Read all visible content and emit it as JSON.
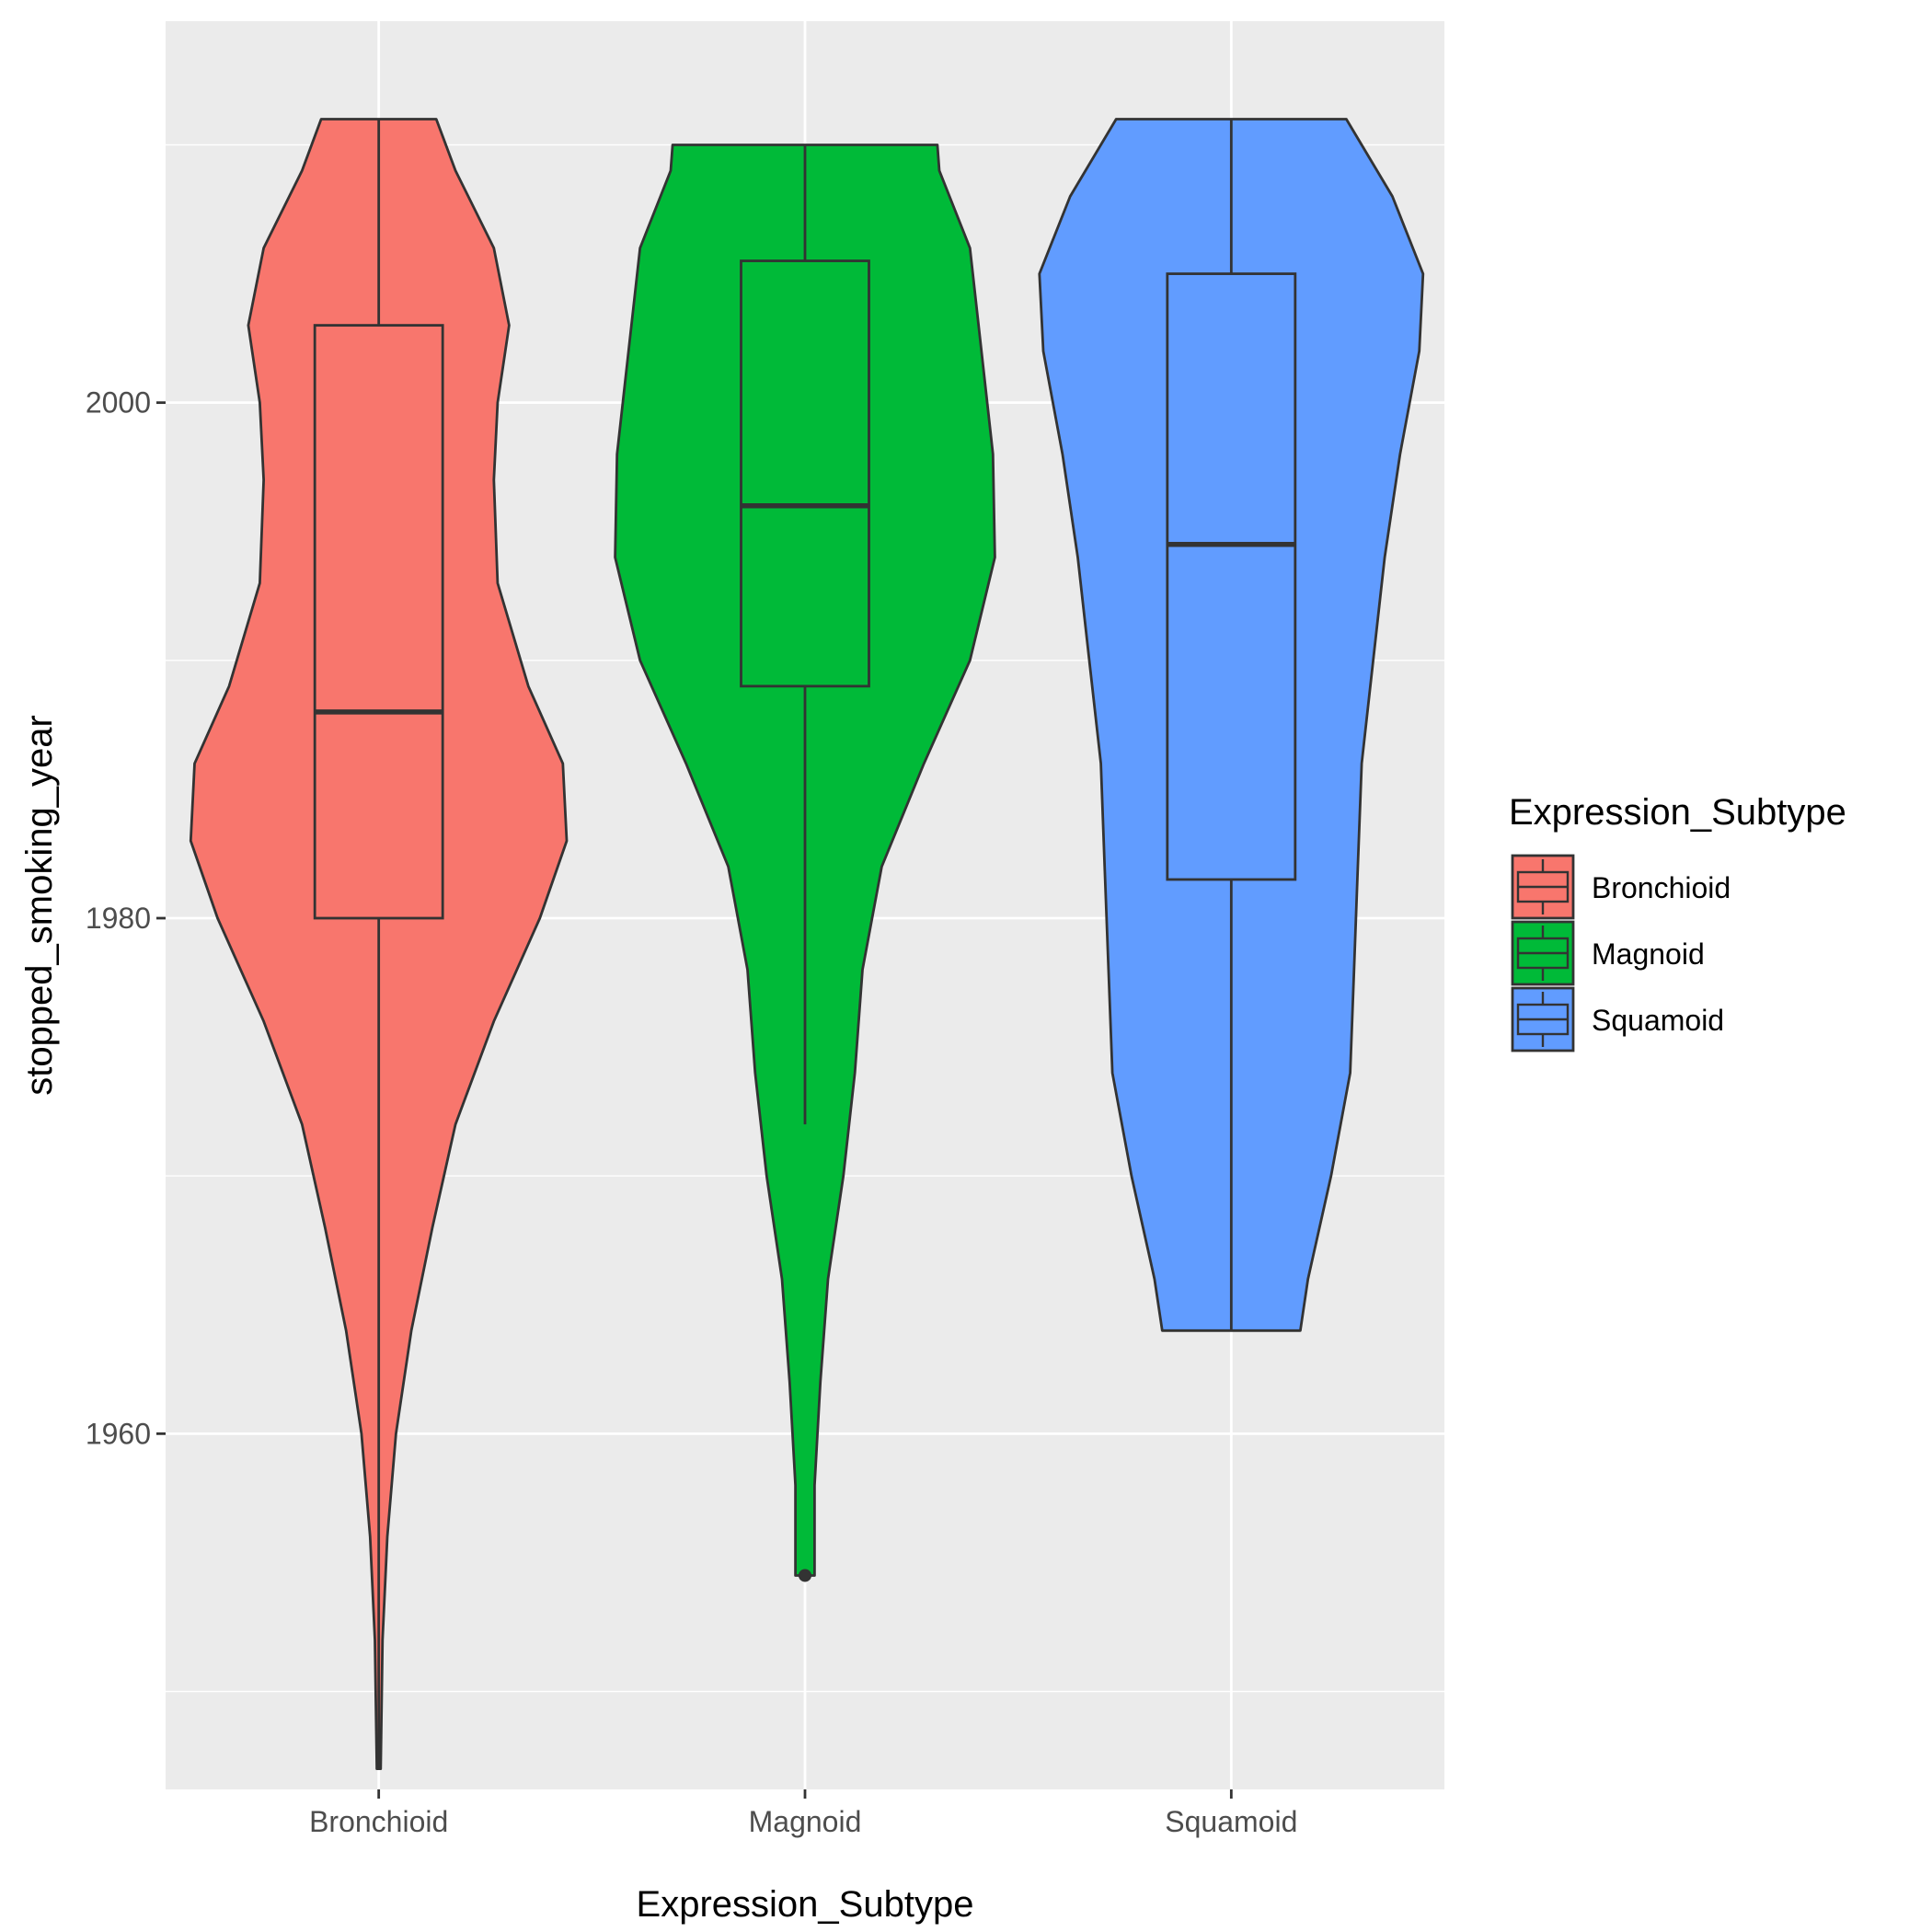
{
  "chart_data": {
    "type": "violin",
    "xlabel": "Expression_Subtype",
    "ylabel": "stopped_smoking_year",
    "categories": [
      "Bronchioid",
      "Magnoid",
      "Squamoid"
    ],
    "ylim": [
      1946.2,
      2014.8
    ],
    "yticks": [
      1960,
      1980,
      2000
    ],
    "y_minor_ticks": [
      1950,
      1970,
      1990,
      2010
    ],
    "grid": true,
    "legend": {
      "title": "Expression_Subtype",
      "position": "right",
      "entries": [
        "Bronchioid",
        "Magnoid",
        "Squamoid"
      ]
    },
    "colors": {
      "Bronchioid": "#F8766D",
      "Magnoid": "#00BA38",
      "Squamoid": "#619CFF",
      "panel": "#EBEBEB",
      "gridline": "#FFFFFF",
      "outline": "#333333"
    },
    "series": [
      {
        "name": "Bronchioid",
        "box": {
          "min": 1947,
          "q1": 1980,
          "median": 1988,
          "q3": 2003,
          "max": 2011
        },
        "outliers": [],
        "density": [
          [
            1947,
            0.01
          ],
          [
            1952,
            0.02
          ],
          [
            1956,
            0.045
          ],
          [
            1960,
            0.09
          ],
          [
            1964,
            0.17
          ],
          [
            1968,
            0.28
          ],
          [
            1972,
            0.4
          ],
          [
            1976,
            0.6
          ],
          [
            1980,
            0.84
          ],
          [
            1983,
            0.98
          ],
          [
            1986,
            0.96
          ],
          [
            1989,
            0.78
          ],
          [
            1993,
            0.62
          ],
          [
            1997,
            0.6
          ],
          [
            2000,
            0.62
          ],
          [
            2003,
            0.68
          ],
          [
            2006,
            0.6
          ],
          [
            2009,
            0.4
          ],
          [
            2011,
            0.3
          ]
        ]
      },
      {
        "name": "Magnoid",
        "box": {
          "min": 1972,
          "q1": 1989,
          "median": 1996,
          "q3": 2005.5,
          "max": 2010
        },
        "outliers": [
          1954.5
        ],
        "density": [
          [
            1954.5,
            0.05
          ],
          [
            1958,
            0.05
          ],
          [
            1962,
            0.08
          ],
          [
            1966,
            0.12
          ],
          [
            1970,
            0.2
          ],
          [
            1974,
            0.26
          ],
          [
            1978,
            0.3
          ],
          [
            1982,
            0.4
          ],
          [
            1986,
            0.62
          ],
          [
            1990,
            0.86
          ],
          [
            1994,
            0.99
          ],
          [
            1998,
            0.98
          ],
          [
            2002,
            0.92
          ],
          [
            2006,
            0.86
          ],
          [
            2009,
            0.7
          ],
          [
            2010,
            0.69
          ]
        ]
      },
      {
        "name": "Squamoid",
        "box": {
          "min": 1964,
          "q1": 1981.5,
          "median": 1994.5,
          "q3": 2005,
          "max": 2011
        },
        "outliers": [],
        "density": [
          [
            1964,
            0.36
          ],
          [
            1966,
            0.4
          ],
          [
            1970,
            0.52
          ],
          [
            1974,
            0.62
          ],
          [
            1978,
            0.64
          ],
          [
            1982,
            0.66
          ],
          [
            1986,
            0.68
          ],
          [
            1990,
            0.74
          ],
          [
            1994,
            0.8
          ],
          [
            1998,
            0.88
          ],
          [
            2002,
            0.98
          ],
          [
            2005,
            1.0
          ],
          [
            2008,
            0.84
          ],
          [
            2011,
            0.6
          ]
        ]
      }
    ]
  }
}
